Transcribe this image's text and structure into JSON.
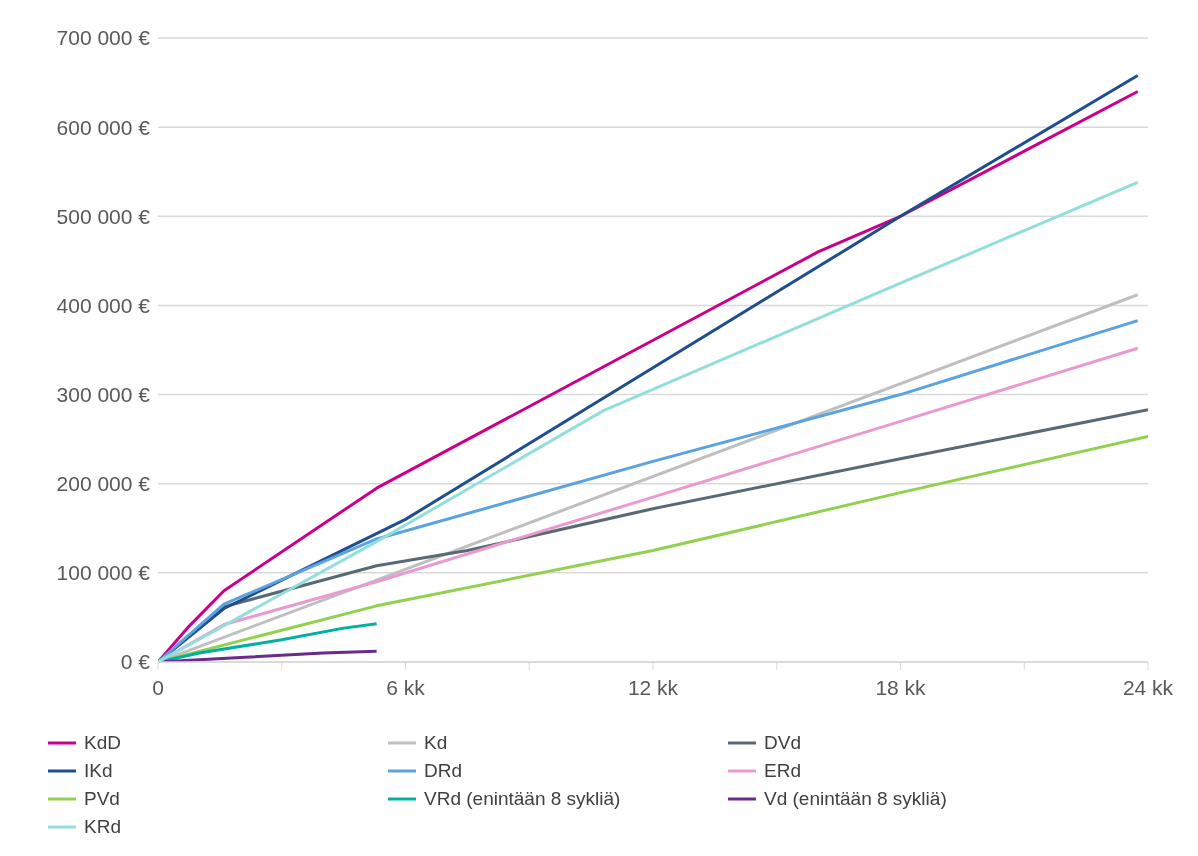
{
  "chart_data": {
    "type": "line",
    "xlim": [
      0,
      24
    ],
    "ylim": [
      0,
      700000
    ],
    "xticks": [
      {
        "value": 0,
        "label": "0"
      },
      {
        "value": 3,
        "label": null
      },
      {
        "value": 6,
        "label": "6 kk"
      },
      {
        "value": 9,
        "label": null
      },
      {
        "value": 12,
        "label": "12 kk"
      },
      {
        "value": 15,
        "label": null
      },
      {
        "value": 18,
        "label": "18 kk"
      },
      {
        "value": 21,
        "label": null
      },
      {
        "value": 24,
        "label": "24 kk"
      }
    ],
    "yticks": [
      {
        "value": 0,
        "label": "0 €"
      },
      {
        "value": 100000,
        "label": "100 000 €"
      },
      {
        "value": 200000,
        "label": "200 000 €"
      },
      {
        "value": 300000,
        "label": "300 000 €"
      },
      {
        "value": 400000,
        "label": "400 000 €"
      },
      {
        "value": 500000,
        "label": "500 000 €"
      },
      {
        "value": 600000,
        "label": "600 000 €"
      },
      {
        "value": 700000,
        "label": "700 000 €"
      }
    ],
    "grid": "y",
    "legend": "bottom",
    "marker": "none",
    "line_style": "solid",
    "series": [
      {
        "name": "KdD",
        "color": "#cc0088",
        "x": [
          0,
          0.75,
          1.6,
          5.3,
          16,
          18,
          23.75
        ],
        "values": [
          0,
          40000,
          80000,
          195000,
          460000,
          500000,
          640000
        ]
      },
      {
        "name": "Kd",
        "color": "#bfbfbf",
        "x": [
          0,
          23.75
        ],
        "values": [
          0,
          412000
        ]
      },
      {
        "name": "DVd",
        "color": "#5a6a75",
        "x": [
          0,
          1.6,
          5.3,
          7.5,
          12,
          18,
          24
        ],
        "values": [
          0,
          62000,
          108000,
          125000,
          172000,
          228000,
          283000
        ]
      },
      {
        "name": "IKd",
        "color": "#1f4e8c",
        "x": [
          0,
          1.6,
          6,
          12,
          18,
          23.75
        ],
        "values": [
          0,
          60000,
          160000,
          330000,
          500000,
          658000
        ]
      },
      {
        "name": "DRd",
        "color": "#5ba3e0",
        "x": [
          0,
          1.6,
          5.3,
          12,
          18,
          23.75
        ],
        "values": [
          0,
          65000,
          138000,
          225000,
          300000,
          383000
        ]
      },
      {
        "name": "ERd",
        "color": "#e99ad0",
        "x": [
          0,
          1.6,
          5.3,
          12,
          18,
          23.75
        ],
        "values": [
          0,
          42000,
          90000,
          185000,
          270000,
          352000
        ]
      },
      {
        "name": "PVd",
        "color": "#92d050",
        "x": [
          0,
          5.3,
          12,
          18,
          24
        ],
        "values": [
          0,
          63000,
          125000,
          190000,
          253000
        ]
      },
      {
        "name": "VRd (enintään 8 sykliä)",
        "color": "#00b0a0",
        "x": [
          0,
          1,
          3,
          4.5,
          5.3
        ],
        "values": [
          0,
          10000,
          25000,
          38000,
          43000
        ]
      },
      {
        "name": "Vd (enintään 8 sykliä)",
        "color": "#6a2c8c",
        "x": [
          0,
          2,
          4,
          5.3
        ],
        "values": [
          0,
          5000,
          10000,
          12000
        ]
      },
      {
        "name": "KRd",
        "color": "#93dedb",
        "x": [
          0,
          5.3,
          10.8,
          18,
          23.75
        ],
        "values": [
          0,
          135000,
          282000,
          425000,
          538000
        ]
      }
    ]
  }
}
